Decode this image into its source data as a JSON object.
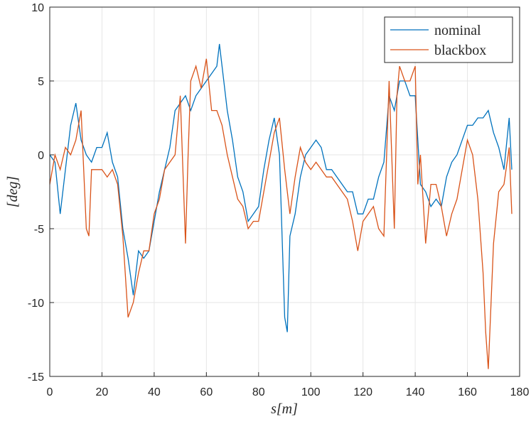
{
  "chart_data": {
    "type": "line",
    "xlabel": "s[m]",
    "ylabel": "[deg]",
    "xlim": [
      0,
      180
    ],
    "xticks": [
      0,
      20,
      40,
      60,
      80,
      100,
      120,
      140,
      160,
      180
    ],
    "ylim": [
      -15,
      10
    ],
    "yticks": [
      -15,
      -10,
      -5,
      0,
      5,
      10
    ],
    "grid": true,
    "legend": "upper right",
    "series": [
      {
        "name": "nominal",
        "color": "#0072BD",
        "x": [
          0,
          2,
          4,
          6,
          8,
          10,
          12,
          14,
          16,
          18,
          20,
          22,
          24,
          26,
          28,
          30,
          32,
          34,
          36,
          38,
          40,
          42,
          44,
          46,
          48,
          50,
          52,
          54,
          56,
          58,
          60,
          62,
          64,
          65,
          66,
          68,
          70,
          72,
          74,
          76,
          78,
          80,
          82,
          84,
          86,
          88,
          90,
          91,
          92,
          94,
          96,
          98,
          100,
          102,
          104,
          106,
          108,
          110,
          112,
          114,
          116,
          118,
          120,
          122,
          124,
          126,
          128,
          130,
          132,
          134,
          136,
          138,
          140,
          142,
          144,
          146,
          148,
          150,
          152,
          154,
          156,
          158,
          160,
          162,
          164,
          166,
          168,
          170,
          172,
          174,
          176,
          177
        ],
        "values": [
          0,
          -0.5,
          -4,
          -1,
          2,
          3.5,
          1,
          0,
          -0.5,
          0.5,
          0.5,
          1.5,
          -0.5,
          -1.5,
          -5,
          -7,
          -9.5,
          -6.5,
          -7,
          -6.5,
          -4.5,
          -2.5,
          -1,
          0.5,
          3,
          3.5,
          4,
          3,
          4,
          4.5,
          5,
          5.5,
          6,
          7.5,
          6,
          3,
          1,
          -1.5,
          -2.5,
          -4.5,
          -4,
          -3.5,
          -1,
          1,
          2.5,
          0,
          -11,
          -12,
          -5.5,
          -4,
          -1.5,
          0,
          0.5,
          1,
          0.5,
          -1,
          -1,
          -1.5,
          -2,
          -2.5,
          -2.5,
          -4,
          -4,
          -3,
          -3,
          -1.5,
          -0.5,
          4,
          3,
          5,
          5,
          4,
          4,
          -2,
          -2.5,
          -3.5,
          -3,
          -3.5,
          -1.5,
          -0.5,
          0,
          1,
          2,
          2,
          2.5,
          2.5,
          3,
          1.5,
          0.5,
          -1,
          2.5,
          -1
        ]
      },
      {
        "name": "blackbox",
        "color": "#D95319",
        "x": [
          0,
          2,
          4,
          6,
          8,
          10,
          12,
          14,
          15,
          16,
          18,
          20,
          22,
          24,
          26,
          28,
          30,
          32,
          34,
          36,
          38,
          40,
          42,
          44,
          46,
          48,
          50,
          52,
          53,
          54,
          56,
          58,
          60,
          62,
          64,
          66,
          68,
          70,
          72,
          74,
          76,
          78,
          80,
          82,
          84,
          86,
          88,
          90,
          92,
          94,
          96,
          98,
          100,
          102,
          104,
          106,
          108,
          110,
          112,
          114,
          116,
          118,
          120,
          122,
          124,
          126,
          128,
          130,
          132,
          133,
          134,
          136,
          138,
          140,
          141,
          142,
          144,
          146,
          148,
          150,
          152,
          154,
          156,
          158,
          160,
          162,
          164,
          166,
          167,
          168,
          170,
          172,
          174,
          176,
          177
        ],
        "values": [
          -2,
          0,
          -1,
          0.5,
          0,
          1,
          3,
          -5,
          -5.5,
          -1,
          -1,
          -1,
          -1.5,
          -1,
          -2,
          -5.5,
          -11,
          -10,
          -8,
          -6.5,
          -6.5,
          -4,
          -3,
          -1,
          -0.5,
          0,
          4,
          -6,
          0,
          5,
          6,
          4.5,
          6.5,
          3,
          3,
          2,
          0,
          -1.5,
          -3,
          -3.5,
          -5,
          -4.5,
          -4.5,
          -2.5,
          -0.5,
          1.5,
          2.5,
          -1,
          -4,
          -1.5,
          0.5,
          -0.5,
          -1,
          -0.5,
          -1,
          -1.5,
          -1.5,
          -2,
          -2.5,
          -3,
          -4.5,
          -6.5,
          -4.5,
          -4,
          -3.5,
          -5,
          -5.5,
          5,
          -5,
          4,
          6,
          5,
          5,
          6,
          -2,
          0,
          -6,
          -2,
          -2,
          -3.5,
          -5.5,
          -4,
          -3,
          -1,
          1,
          0,
          -3,
          -8,
          -12,
          -14.5,
          -6,
          -2.5,
          -2,
          0.5,
          -4
        ]
      }
    ]
  }
}
